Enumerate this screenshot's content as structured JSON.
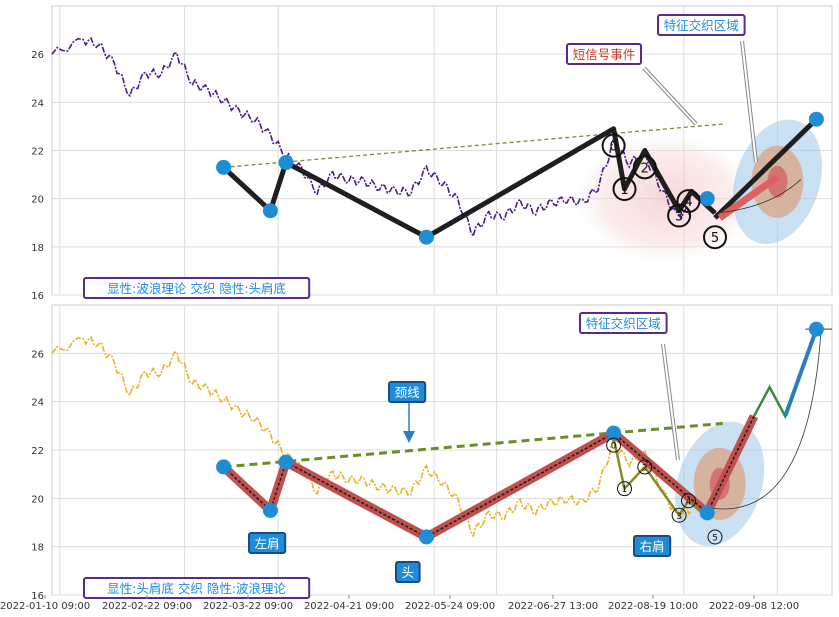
{
  "chart_data": [
    {
      "type": "line",
      "panel": "top",
      "ylim": [
        16,
        28
      ],
      "yticks": [
        "16",
        "18",
        "20",
        "22",
        "24",
        "26"
      ],
      "grid": true,
      "annotations": {
        "info_label": "显性:波浪理论 交织 隐性:头肩底",
        "short_signal": "短信号事件",
        "feature_zone": "特征交织区域"
      },
      "price_path": [
        [
          0,
          26.0
        ],
        [
          2,
          26.6
        ],
        [
          3,
          26.4
        ],
        [
          4,
          25.6
        ],
        [
          5,
          24.3
        ],
        [
          6,
          25.2
        ],
        [
          7,
          25.2
        ],
        [
          8,
          26.0
        ],
        [
          9,
          24.8
        ],
        [
          10,
          24.5
        ],
        [
          11,
          24.1
        ],
        [
          12,
          23.6
        ],
        [
          13,
          23.3
        ],
        [
          14,
          22.6
        ],
        [
          15,
          21.8
        ],
        [
          16,
          21.2
        ],
        [
          17,
          20.3
        ],
        [
          18,
          21.0
        ],
        [
          19,
          20.8
        ],
        [
          20,
          20.7
        ],
        [
          21,
          20.5
        ],
        [
          22,
          20.3
        ],
        [
          23,
          20.3
        ],
        [
          24,
          21.2
        ],
        [
          25,
          20.7
        ],
        [
          26,
          19.9
        ],
        [
          27,
          18.6
        ],
        [
          28,
          19.3
        ],
        [
          29,
          19.3
        ],
        [
          30,
          19.8
        ],
        [
          31,
          19.5
        ],
        [
          32,
          19.8
        ],
        [
          33,
          20.0
        ],
        [
          34,
          19.8
        ],
        [
          35,
          20.5
        ],
        [
          36,
          22.3
        ],
        [
          37,
          21.5
        ],
        [
          38,
          21.8
        ],
        [
          39,
          20.5
        ],
        [
          40,
          19.3
        ],
        [
          41,
          19.5
        ]
      ],
      "pivot_markers": {
        "x": [
          11,
          14,
          15,
          24,
          42,
          49
        ],
        "y": [
          21.3,
          19.5,
          21.5,
          18.4,
          20.0,
          23.3
        ]
      },
      "wave_labels": [
        {
          "label": "0",
          "x": 36,
          "y": 22.2
        },
        {
          "label": "1",
          "x": 36.7,
          "y": 20.4
        },
        {
          "label": "2",
          "x": 38,
          "y": 21.3
        },
        {
          "label": "3",
          "x": 40.2,
          "y": 19.3
        },
        {
          "label": "4",
          "x": 40.8,
          "y": 19.9
        },
        {
          "label": "5",
          "x": 42.5,
          "y": 18.4
        }
      ]
    },
    {
      "type": "line",
      "panel": "bottom",
      "ylim": [
        16,
        28
      ],
      "yticks": [
        "16",
        "18",
        "20",
        "22",
        "24",
        "26"
      ],
      "grid": true,
      "xticks": [
        "2022-01-10 09:00",
        "2022-02-22 09:00",
        "2022-03-22 09:00",
        "2022-04-21 09:00",
        "2022-05-24 09:00",
        "2022-06-27 13:00",
        "2022-08-19 10:00",
        "2022-09-08 12:00"
      ],
      "annotations": {
        "info_label": "显性:头肩底 交织 隐性:波浪理论",
        "neckline": "颈线",
        "left_shoulder": "左肩",
        "head": "头",
        "right_shoulder": "右肩",
        "feature_zone": "特征交织区域"
      },
      "price_path": [
        [
          0,
          26.0
        ],
        [
          2,
          26.6
        ],
        [
          3,
          26.4
        ],
        [
          4,
          25.6
        ],
        [
          5,
          24.3
        ],
        [
          6,
          25.2
        ],
        [
          7,
          25.2
        ],
        [
          8,
          26.0
        ],
        [
          9,
          24.8
        ],
        [
          10,
          24.5
        ],
        [
          11,
          24.1
        ],
        [
          12,
          23.6
        ],
        [
          13,
          23.3
        ],
        [
          14,
          22.6
        ],
        [
          15,
          21.8
        ],
        [
          16,
          21.2
        ],
        [
          17,
          20.3
        ],
        [
          18,
          21.0
        ],
        [
          19,
          20.8
        ],
        [
          20,
          20.7
        ],
        [
          21,
          20.5
        ],
        [
          22,
          20.3
        ],
        [
          23,
          20.3
        ],
        [
          24,
          21.2
        ],
        [
          25,
          20.7
        ],
        [
          26,
          19.9
        ],
        [
          27,
          18.6
        ],
        [
          28,
          19.3
        ],
        [
          29,
          19.3
        ],
        [
          30,
          19.8
        ],
        [
          31,
          19.5
        ],
        [
          32,
          19.8
        ],
        [
          33,
          20.0
        ],
        [
          34,
          19.8
        ],
        [
          35,
          20.5
        ],
        [
          36,
          22.3
        ],
        [
          37,
          21.5
        ],
        [
          38,
          21.8
        ],
        [
          39,
          20.5
        ],
        [
          40,
          19.3
        ],
        [
          41,
          19.5
        ]
      ],
      "pivot_markers": {
        "x": [
          11,
          14,
          15,
          24,
          36,
          42,
          49
        ],
        "y": [
          21.3,
          19.5,
          21.5,
          18.4,
          22.7,
          19.4,
          27.0
        ]
      },
      "wave_labels": [
        {
          "label": "0",
          "x": 36,
          "y": 22.2
        },
        {
          "label": "1",
          "x": 36.7,
          "y": 20.4
        },
        {
          "label": "2",
          "x": 38,
          "y": 21.3
        },
        {
          "label": "3",
          "x": 40.2,
          "y": 19.3
        },
        {
          "label": "4",
          "x": 40.8,
          "y": 19.9
        },
        {
          "label": "5",
          "x": 42.5,
          "y": 18.4
        }
      ]
    }
  ]
}
